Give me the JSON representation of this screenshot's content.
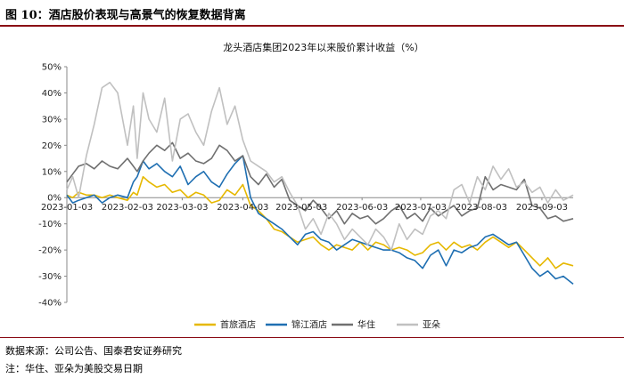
{
  "figure_title": "图 10：酒店股价表现与高景气的恢复数据背离",
  "footnotes": {
    "source": "数据来源：公司公告、国泰君安证券研究",
    "note": "注：华住、亚朵为美股交易日期"
  },
  "chart_data": {
    "type": "line",
    "title": "龙头酒店集团2023年以来股价累计收益（%）",
    "xlabel": "",
    "ylabel": "",
    "ylim": [
      -40,
      50
    ],
    "ytick_labels": [
      "50%",
      "40%",
      "30%",
      "20%",
      "10%",
      "0%",
      "-10%",
      "-20%",
      "-30%",
      "-40%"
    ],
    "yticks": [
      50,
      40,
      30,
      20,
      10,
      0,
      -10,
      -20,
      -30,
      -40
    ],
    "x_tick_labels": [
      "2023-01-03",
      "2023-02-03",
      "2023-03-03",
      "2023-04-03",
      "2023-05-03",
      "2023-06-03",
      "2023-07-03",
      "2023-08-03",
      "2023-09-03"
    ],
    "x_ticks_days": [
      2,
      33,
      61,
      92,
      122,
      153,
      183,
      214,
      245
    ],
    "xlim_days": [
      2,
      261
    ],
    "legend_position": "bottom",
    "grid": false,
    "series": [
      {
        "name": "首旅酒店",
        "color": "#e6b800",
        "x": [
          2,
          5,
          8,
          12,
          16,
          20,
          24,
          28,
          33,
          36,
          38,
          41,
          44,
          48,
          52,
          56,
          60,
          64,
          68,
          72,
          76,
          80,
          84,
          88,
          92,
          96,
          100,
          104,
          108,
          112,
          116,
          120,
          124,
          128,
          132,
          136,
          140,
          144,
          148,
          152,
          156,
          160,
          164,
          168,
          172,
          176,
          180,
          184,
          188,
          192,
          196,
          200,
          204,
          208,
          212,
          216,
          220,
          224,
          228,
          232,
          236,
          240,
          244,
          248,
          252,
          256,
          261
        ],
        "values": [
          1,
          0,
          2,
          1,
          1,
          0,
          1,
          0,
          -1,
          2,
          1,
          8,
          6,
          4,
          5,
          2,
          3,
          0,
          2,
          1,
          -2,
          -1,
          3,
          1,
          5,
          -3,
          -5,
          -8,
          -12,
          -13,
          -15,
          -17,
          -16,
          -15,
          -18,
          -20,
          -18,
          -19,
          -20,
          -17,
          -20,
          -17,
          -18,
          -20,
          -19,
          -20,
          -22,
          -21,
          -18,
          -17,
          -20,
          -17,
          -19,
          -18,
          -20,
          -17,
          -15,
          -17,
          -19,
          -17,
          -20,
          -23,
          -26,
          -23,
          -27,
          -25,
          -26
        ]
      },
      {
        "name": "锦江酒店",
        "color": "#1f6fb2",
        "x": [
          2,
          5,
          8,
          12,
          16,
          20,
          24,
          28,
          33,
          36,
          38,
          41,
          44,
          48,
          52,
          56,
          60,
          64,
          68,
          72,
          76,
          80,
          84,
          88,
          92,
          96,
          100,
          104,
          108,
          112,
          116,
          120,
          124,
          128,
          132,
          136,
          140,
          144,
          148,
          152,
          156,
          160,
          164,
          168,
          172,
          176,
          180,
          184,
          188,
          192,
          196,
          200,
          204,
          208,
          212,
          216,
          220,
          224,
          228,
          232,
          236,
          240,
          244,
          248,
          252,
          256,
          261
        ],
        "values": [
          1,
          -2,
          -1,
          0,
          1,
          -2,
          0,
          1,
          0,
          6,
          8,
          14,
          11,
          13,
          10,
          8,
          12,
          5,
          8,
          10,
          6,
          4,
          9,
          13,
          16,
          0,
          -6,
          -8,
          -10,
          -12,
          -15,
          -18,
          -14,
          -13,
          -16,
          -17,
          -20,
          -18,
          -16,
          -17,
          -18,
          -19,
          -20,
          -20,
          -21,
          -23,
          -24,
          -27,
          -22,
          -20,
          -26,
          -20,
          -21,
          -19,
          -18,
          -15,
          -14,
          -16,
          -18,
          -17,
          -22,
          -27,
          -30,
          -28,
          -31,
          -30,
          -33
        ]
      },
      {
        "name": "华住",
        "color": "#707070",
        "x": [
          2,
          5,
          8,
          12,
          16,
          20,
          24,
          28,
          33,
          36,
          38,
          41,
          44,
          48,
          52,
          56,
          60,
          64,
          68,
          72,
          76,
          80,
          84,
          88,
          92,
          96,
          100,
          104,
          108,
          112,
          116,
          120,
          124,
          128,
          132,
          136,
          140,
          144,
          148,
          152,
          156,
          160,
          164,
          168,
          172,
          176,
          180,
          184,
          188,
          192,
          196,
          200,
          204,
          208,
          212,
          216,
          220,
          224,
          228,
          232,
          236,
          240,
          244,
          248,
          252,
          256,
          261
        ],
        "values": [
          6,
          9,
          12,
          13,
          11,
          14,
          12,
          11,
          15,
          12,
          10,
          14,
          17,
          20,
          18,
          21,
          15,
          17,
          14,
          13,
          15,
          20,
          18,
          14,
          16,
          8,
          5,
          9,
          4,
          7,
          -1,
          -3,
          -5,
          -1,
          -4,
          -8,
          -5,
          -10,
          -6,
          -8,
          -7,
          -10,
          -8,
          -5,
          -3,
          -8,
          -6,
          -9,
          -4,
          -7,
          -5,
          -3,
          -7,
          -5,
          -4,
          8,
          3,
          5,
          4,
          3,
          7,
          -3,
          -4,
          -8,
          -7,
          -9,
          -8
        ]
      },
      {
        "name": "亚朵",
        "color": "#c0c0c0",
        "x": [
          2,
          5,
          8,
          12,
          16,
          20,
          24,
          28,
          33,
          36,
          38,
          41,
          44,
          48,
          52,
          56,
          60,
          64,
          68,
          72,
          76,
          80,
          84,
          88,
          92,
          96,
          100,
          104,
          108,
          112,
          116,
          120,
          124,
          128,
          132,
          136,
          140,
          144,
          148,
          152,
          156,
          160,
          164,
          168,
          172,
          176,
          180,
          184,
          188,
          192,
          196,
          200,
          204,
          208,
          212,
          216,
          220,
          224,
          228,
          232,
          236,
          240,
          244,
          248,
          252,
          256,
          261
        ],
        "values": [
          3,
          8,
          0,
          16,
          28,
          42,
          44,
          40,
          20,
          35,
          15,
          40,
          30,
          25,
          38,
          14,
          30,
          32,
          25,
          20,
          33,
          42,
          28,
          35,
          22,
          14,
          12,
          10,
          6,
          8,
          2,
          -3,
          -12,
          -8,
          -14,
          -6,
          -10,
          -16,
          -12,
          -15,
          -18,
          -12,
          -15,
          -20,
          -10,
          -16,
          -12,
          -14,
          -7,
          -5,
          -8,
          3,
          5,
          -2,
          8,
          3,
          12,
          7,
          11,
          4,
          6,
          2,
          4,
          -2,
          3,
          -1,
          1
        ]
      }
    ]
  }
}
